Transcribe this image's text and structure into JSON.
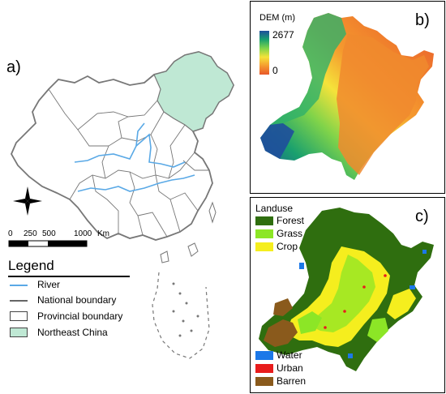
{
  "panel_a": {
    "label": "a)",
    "scale_ticks": [
      "0",
      "250",
      "500",
      "1000",
      "Km"
    ],
    "legend_title": "Legend",
    "legend_items": [
      {
        "label": "River",
        "symbol": "line",
        "color": "#5aa9e6"
      },
      {
        "label": "National boundary",
        "symbol": "dash-line",
        "color": "#666666"
      },
      {
        "label": "Provincial boundary",
        "symbol": "box",
        "color": "#ffffff"
      },
      {
        "label": "Northeast China",
        "symbol": "box",
        "color": "#bfe8d4"
      }
    ],
    "colors": {
      "china_fill": "#ffffff",
      "northeast_fill": "#bfe8d4",
      "border": "#777777",
      "river": "#5aa9e6"
    }
  },
  "panel_b": {
    "label": "b)",
    "legend_title": "DEM (m)",
    "max_label": "2677",
    "min_label": "0",
    "gradient": [
      "#1f4e9c",
      "#19a06e",
      "#7fd34a",
      "#f5e33a",
      "#f59a2e",
      "#e8582a"
    ]
  },
  "panel_c": {
    "label": "c)",
    "legend_title": "Landuse",
    "classes": [
      {
        "label": "Forest",
        "color": "#2f6e0f"
      },
      {
        "label": "Grass",
        "color": "#8ce626"
      },
      {
        "label": "Crop",
        "color": "#f5ee1e"
      },
      {
        "label": "Water",
        "color": "#1c78e8"
      },
      {
        "label": "Urban",
        "color": "#e81c1c"
      },
      {
        "label": "Barren",
        "color": "#8a5a1c"
      }
    ]
  }
}
